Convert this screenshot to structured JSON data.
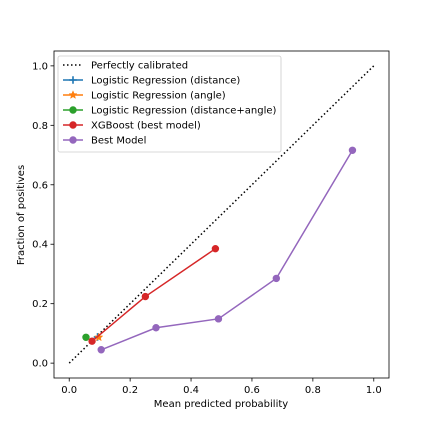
{
  "chart_data": {
    "type": "line",
    "xlabel": "Mean predicted probability",
    "ylabel": "Fraction of positives",
    "xlim": [
      -0.05,
      1.05
    ],
    "ylim": [
      -0.05,
      1.05
    ],
    "xticks": [
      0.0,
      0.2,
      0.4,
      0.6,
      0.8,
      1.0
    ],
    "yticks": [
      0.0,
      0.2,
      0.4,
      0.6,
      0.8,
      1.0
    ],
    "grid": false,
    "legend_position": "top-left",
    "series": [
      {
        "name": "Perfectly calibrated",
        "color": "#000000",
        "style": "dotted",
        "marker": "none",
        "x": [
          0,
          1
        ],
        "y": [
          0,
          1
        ]
      },
      {
        "name": "Logistic Regression (distance)",
        "color": "#1f77b4",
        "style": "solid",
        "marker": "plus",
        "x": [
          0.093
        ],
        "y": [
          0.088
        ]
      },
      {
        "name": "Logistic Regression (angle)",
        "color": "#ff7f0e",
        "style": "solid",
        "marker": "star",
        "x": [
          0.097
        ],
        "y": [
          0.087
        ]
      },
      {
        "name": "Logistic Regression (distance+angle)",
        "color": "#2ca02c",
        "style": "solid",
        "marker": "circle",
        "x": [
          0.055
        ],
        "y": [
          0.087
        ]
      },
      {
        "name": "XGBoost (best model)",
        "color": "#d62728",
        "style": "solid",
        "marker": "circle",
        "x": [
          0.075,
          0.25,
          0.48
        ],
        "y": [
          0.074,
          0.224,
          0.385
        ]
      },
      {
        "name": "Best Model",
        "color": "#9467bd",
        "style": "solid",
        "marker": "circle",
        "x": [
          0.105,
          0.285,
          0.49,
          0.68,
          0.93
        ],
        "y": [
          0.045,
          0.119,
          0.149,
          0.285,
          0.716
        ]
      }
    ]
  }
}
